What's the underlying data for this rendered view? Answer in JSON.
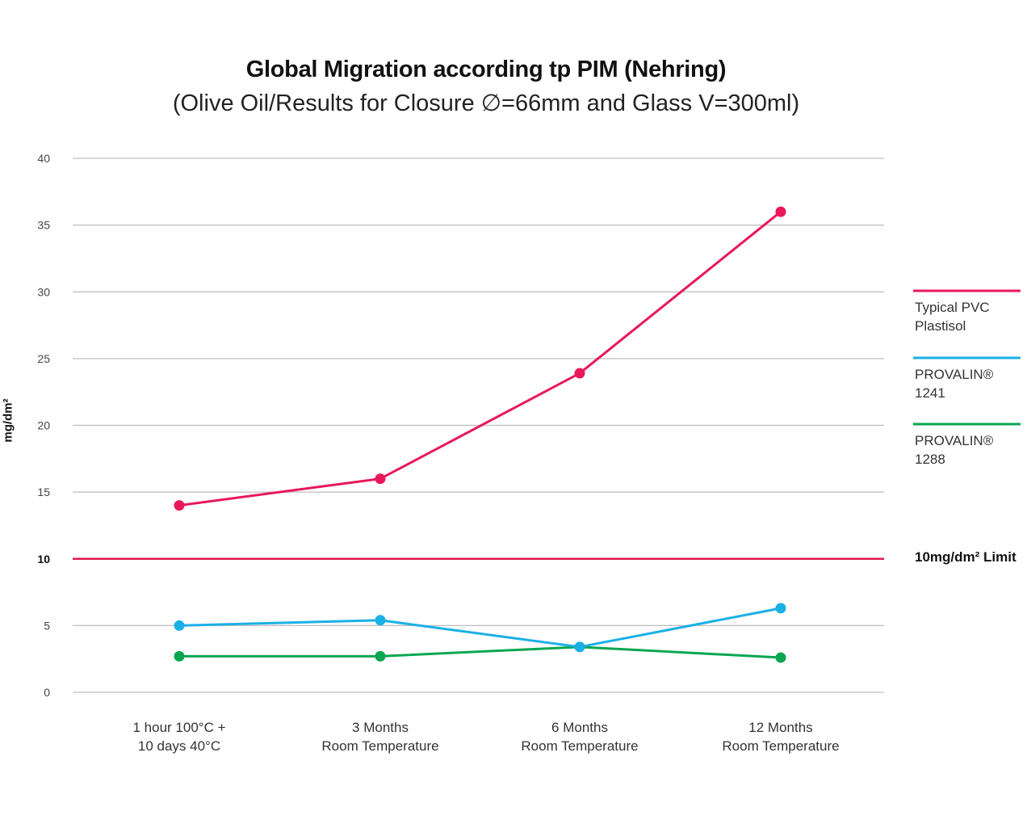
{
  "chart_data": {
    "type": "line",
    "title": "Global Migration according tp PIM (Nehring)",
    "subtitle": "(Olive Oil/Results for Closure ∅=66mm and Glass V=300ml)",
    "ylabel": "mg/dm²",
    "xlabel": "",
    "ylim": [
      0,
      40
    ],
    "yticks": [
      "0",
      "5",
      "10",
      "15",
      "20",
      "25",
      "30",
      "35",
      "40"
    ],
    "categories": [
      [
        "1 hour 100°C +",
        "10 days 40°C"
      ],
      [
        "3 Months",
        "Room Temperature"
      ],
      [
        "6 Months",
        "Room Temperature"
      ],
      [
        "12 Months",
        "Room Temperature"
      ]
    ],
    "series": [
      {
        "name": [
          "Typical PVC",
          "Plastisol"
        ],
        "color": "#e8185a",
        "values": [
          14.0,
          16.0,
          23.9,
          36.0
        ]
      },
      {
        "name": [
          "PROVALIN®",
          "1241"
        ],
        "color": "#1ab0e6",
        "values": [
          5.0,
          5.4,
          3.4,
          6.3
        ]
      },
      {
        "name": [
          "PROVALIN®",
          "1288"
        ],
        "color": "#0aa650",
        "values": [
          2.7,
          2.7,
          3.4,
          2.6
        ]
      }
    ],
    "limit": {
      "value": 10,
      "label": "10mg/dm² Limit",
      "color": "#e01a4f"
    },
    "grid": true,
    "legend": "right"
  }
}
